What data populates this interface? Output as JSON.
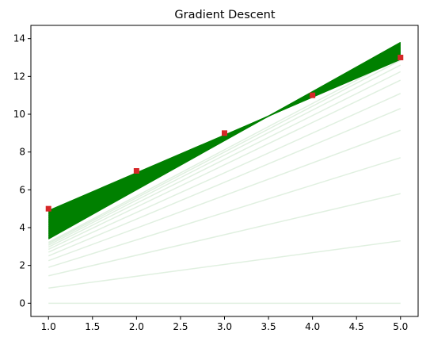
{
  "chart_data": {
    "type": "line",
    "title": "Gradient Descent",
    "xlabel": "",
    "ylabel": "",
    "xlim": [
      0.8,
      5.2
    ],
    "ylim": [
      -0.7,
      14.7
    ],
    "x_ticks": [
      1.0,
      1.5,
      2.0,
      2.5,
      3.0,
      3.5,
      4.0,
      4.5,
      5.0
    ],
    "x_tick_labels": [
      "1.0",
      "1.5",
      "2.0",
      "2.5",
      "3.0",
      "3.5",
      "4.0",
      "4.5",
      "5.0"
    ],
    "y_ticks": [
      0,
      2,
      4,
      6,
      8,
      10,
      12,
      14
    ],
    "y_tick_labels": [
      "0",
      "2",
      "4",
      "6",
      "8",
      "10",
      "12",
      "14"
    ],
    "grid": false,
    "data_points": {
      "x": [
        1,
        2,
        3,
        4,
        5
      ],
      "y": [
        5,
        7,
        9,
        11,
        13
      ],
      "color": "#d62728",
      "marker": "square"
    },
    "fit_lines": {
      "color": "#008000",
      "early": [
        {
          "y_at_x1": 0.0,
          "y_at_x5": 0.0
        },
        {
          "y_at_x1": 0.8,
          "y_at_x5": 3.3
        },
        {
          "y_at_x1": 1.45,
          "y_at_x5": 5.8
        },
        {
          "y_at_x1": 1.9,
          "y_at_x5": 7.7
        },
        {
          "y_at_x1": 2.25,
          "y_at_x5": 9.15
        },
        {
          "y_at_x1": 2.5,
          "y_at_x5": 10.3
        },
        {
          "y_at_x1": 2.7,
          "y_at_x5": 11.1
        },
        {
          "y_at_x1": 2.85,
          "y_at_x5": 11.8
        },
        {
          "y_at_x1": 2.97,
          "y_at_x5": 12.25
        },
        {
          "y_at_x1": 3.07,
          "y_at_x5": 12.6
        },
        {
          "y_at_x1": 3.15,
          "y_at_x5": 12.85
        },
        {
          "y_at_x1": 3.22,
          "y_at_x5": 13.02
        }
      ],
      "band_low": {
        "y_at_x1": 3.4,
        "y_at_x5": 13.8
      },
      "band_high": {
        "y_at_x1": 4.9,
        "y_at_x5": 12.9
      }
    }
  }
}
